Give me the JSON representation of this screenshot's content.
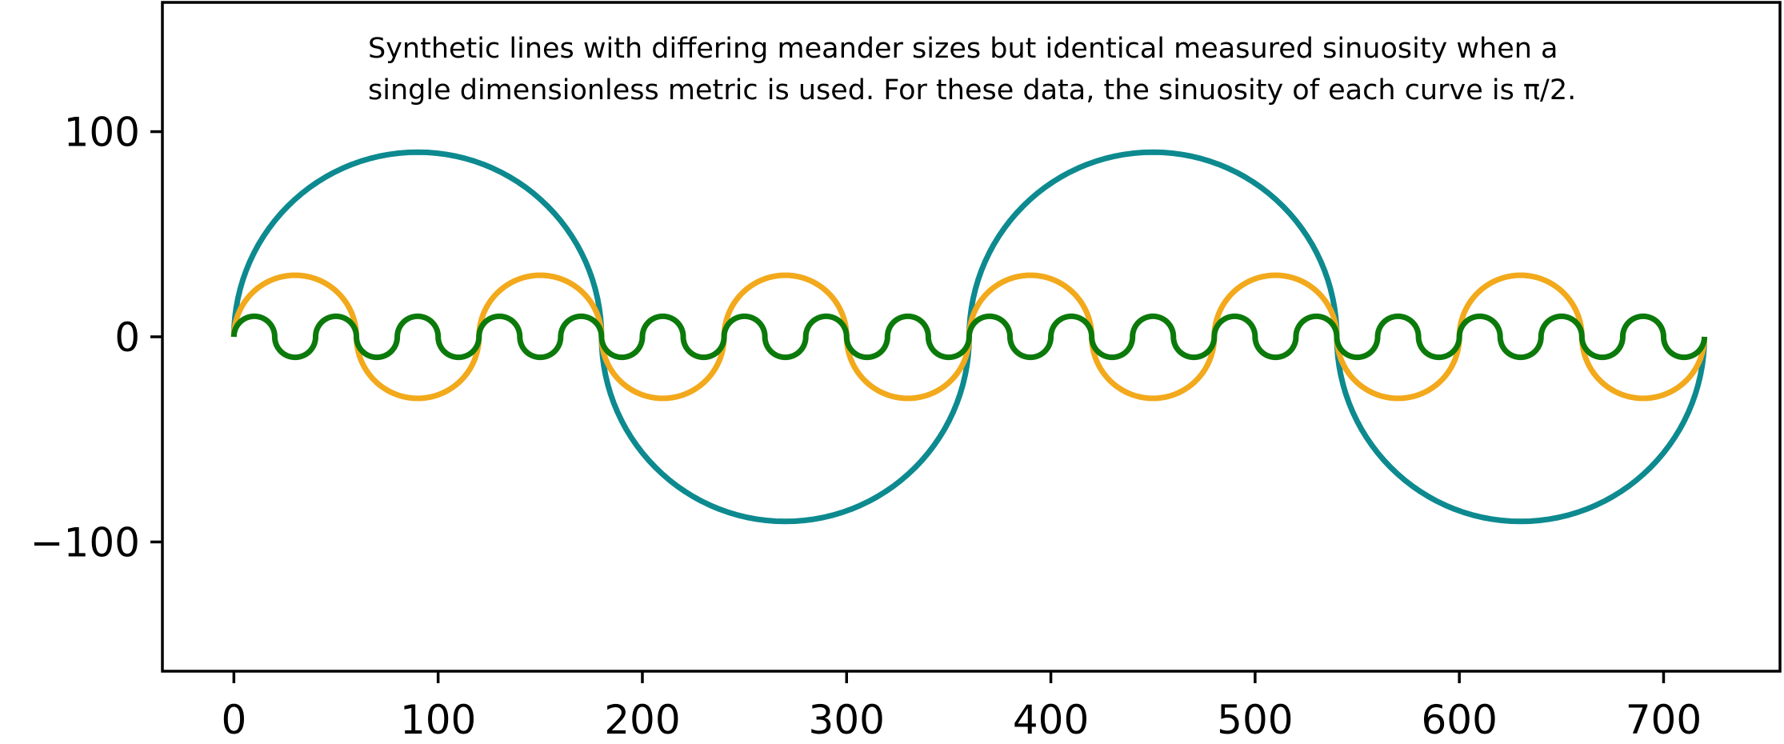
{
  "chart_data": {
    "type": "line",
    "annotation": [
      "Synthetic lines with differing meander sizes but identical measured sinuosity when a",
      "single dimensionless metric is used. For these data, the sinuosity of each curve is π/2."
    ],
    "xlim": [
      -35,
      757
    ],
    "ylim": [
      -163,
      163
    ],
    "x_ticks": [
      0,
      100,
      200,
      300,
      400,
      500,
      600,
      700
    ],
    "x_tick_labels": [
      "0",
      "100",
      "200",
      "300",
      "400",
      "500",
      "600",
      "700"
    ],
    "y_ticks": [
      100,
      0,
      -100
    ],
    "y_tick_labels": [
      "100",
      "0",
      "−100"
    ],
    "grid": false,
    "legend": false,
    "series": [
      {
        "color": "#0d8a8f",
        "meander_diameter": 180,
        "amplitude": 90,
        "x_start": 0,
        "x_end": 720
      },
      {
        "color": "#f2a91b",
        "meander_diameter": 60,
        "amplitude": 30,
        "x_start": 0,
        "x_end": 720
      },
      {
        "color": "#0b7a0b",
        "meander_diameter": 20,
        "amplitude": 10,
        "x_start": 0,
        "x_end": 720
      }
    ]
  }
}
